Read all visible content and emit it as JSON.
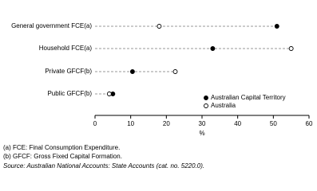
{
  "chart_data": {
    "type": "dot",
    "categories": [
      "General government FCE(a)",
      "Household FCE(a)",
      "Private GFCF(b)",
      "Public GFCF(b)"
    ],
    "series": [
      {
        "name": "Australian Capital Territory",
        "color": "#000000",
        "marker": "filled",
        "values": [
          51,
          33,
          10.5,
          5
        ]
      },
      {
        "name": "Australia",
        "color": "#000000",
        "marker": "open",
        "values": [
          18,
          55,
          22.5,
          4
        ]
      }
    ],
    "xlim": [
      0,
      60
    ],
    "xticks": [
      0,
      10,
      20,
      30,
      40,
      50,
      60
    ],
    "xlabel": "%",
    "legend": "bottom-right"
  },
  "footnotes": [
    "(a) FCE: Final Consumption Expenditure.",
    "(b) GFCF: Gross Fixed Capital Formation."
  ],
  "source": "Source: Australian National Accounts: State Accounts (cat. no. 5220.0)."
}
